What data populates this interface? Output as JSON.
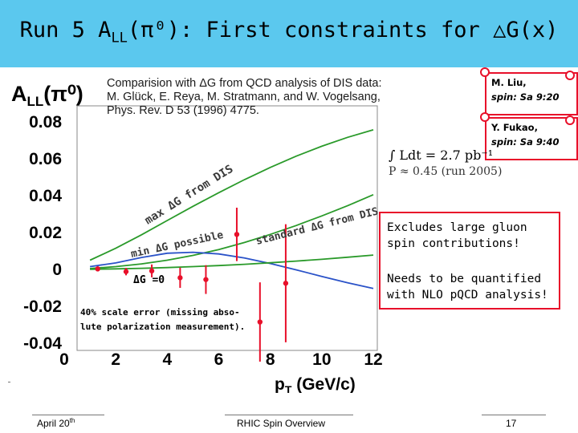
{
  "slide": {
    "title_main": "Run 5 A",
    "title_sub": "LL",
    "title_rest": "(π⁰): First constraints for △G(x)",
    "reference": "Comparision with ΔG from QCD analysis of DIS data:  M. Glück, E. Reya, M. Stratmann, and W. Vogelsang, Phys. Rev. D 53 (1996) 4775.",
    "speakers": [
      {
        "name": "M. Liu,",
        "time": "spin: Sa 9:20"
      },
      {
        "name": "Y. Fukao,",
        "time": "spin: Sa 9:40"
      }
    ],
    "luminosity_line1": "∫ Ldt = 2.7 pb⁻¹",
    "luminosity_line2": "P ≈ 0.45  (run 2005)",
    "note1": "Excludes large gluon spin contributions!",
    "note2": "Needs to be quantified with NLO pQCD analysis!",
    "footer_date": "April 20",
    "footer_date_sup": "th",
    "footer_center": "RHIC Spin Overview",
    "footer_page": "17",
    "accent_color": "#e8102a",
    "title_bg_color": "#5bc8ee"
  },
  "chart_data": {
    "type": "scatter",
    "ylabel_main": "A",
    "ylabel_sub": "LL",
    "ylabel_rest": "(π⁰)",
    "xlabel": "p",
    "xlabel_sub": "T",
    "xlabel_rest": " (GeV/c)",
    "xlim": [
      0,
      12
    ],
    "ylim": [
      -0.04,
      0.08
    ],
    "x_ticks": [
      "0",
      "2",
      "4",
      "6",
      "8",
      "10",
      "12"
    ],
    "y_ticks": [
      "0.08",
      "0.06",
      "0.04",
      "0.02",
      "0",
      "-0.02",
      "-0.04"
    ],
    "grid": false,
    "series": [
      {
        "type": "points",
        "color": "#e8102a",
        "x": [
          1.3,
          2.4,
          3.4,
          4.5,
          5.5,
          6.7,
          7.6,
          8.6
        ],
        "y": [
          0.0003,
          -0.0012,
          -0.0008,
          -0.0045,
          -0.0055,
          0.019,
          -0.0285,
          -0.0075
        ],
        "yerr": [
          0.0014,
          0.002,
          0.0035,
          0.0055,
          0.0078,
          0.0145,
          0.0215,
          0.032
        ]
      },
      {
        "type": "curve",
        "color": "#2a9a2a",
        "label": "max ΔG from DIS",
        "x": [
          1,
          2,
          3,
          4,
          5,
          6,
          7,
          8,
          9,
          10,
          11,
          12
        ],
        "y": [
          0.005,
          0.0115,
          0.0188,
          0.0265,
          0.0342,
          0.0416,
          0.0487,
          0.0553,
          0.0614,
          0.0668,
          0.0716,
          0.0757
        ]
      },
      {
        "type": "curve",
        "color": "#2a9a2a",
        "label": "standard ΔG from DIS",
        "x": [
          1,
          2,
          3,
          4,
          5,
          6,
          7,
          8,
          9,
          10,
          11,
          12
        ],
        "y": [
          0.0005,
          0.0015,
          0.003,
          0.005,
          0.0076,
          0.0108,
          0.0146,
          0.019,
          0.0238,
          0.029,
          0.0345,
          0.0405
        ]
      },
      {
        "type": "curve",
        "color": "#2a52c8",
        "label": "min ΔG possible",
        "x": [
          1,
          2,
          3,
          4,
          5,
          6,
          7,
          8,
          9,
          10,
          11,
          12
        ],
        "y": [
          0.0015,
          0.0035,
          0.0065,
          0.0088,
          0.0093,
          0.0084,
          0.0062,
          0.0032,
          -0.0002,
          -0.0038,
          -0.0072,
          -0.0103
        ]
      },
      {
        "type": "curve",
        "color": "#2a9a2a",
        "label": "ΔG =0",
        "x": [
          1,
          2,
          3,
          4,
          5,
          6,
          7,
          8,
          9,
          10,
          11,
          12
        ],
        "y": [
          0.0001,
          0.0003,
          0.0006,
          0.001,
          0.0015,
          0.0021,
          0.0028,
          0.0036,
          0.0045,
          0.0055,
          0.0066,
          0.0078
        ]
      }
    ],
    "annotations": [
      "max ΔG from DIS",
      "min ΔG possible",
      "standard ΔG from DIS",
      "ΔG =0",
      "40% scale error (missing abso-",
      "lute polarization measurement)."
    ]
  }
}
